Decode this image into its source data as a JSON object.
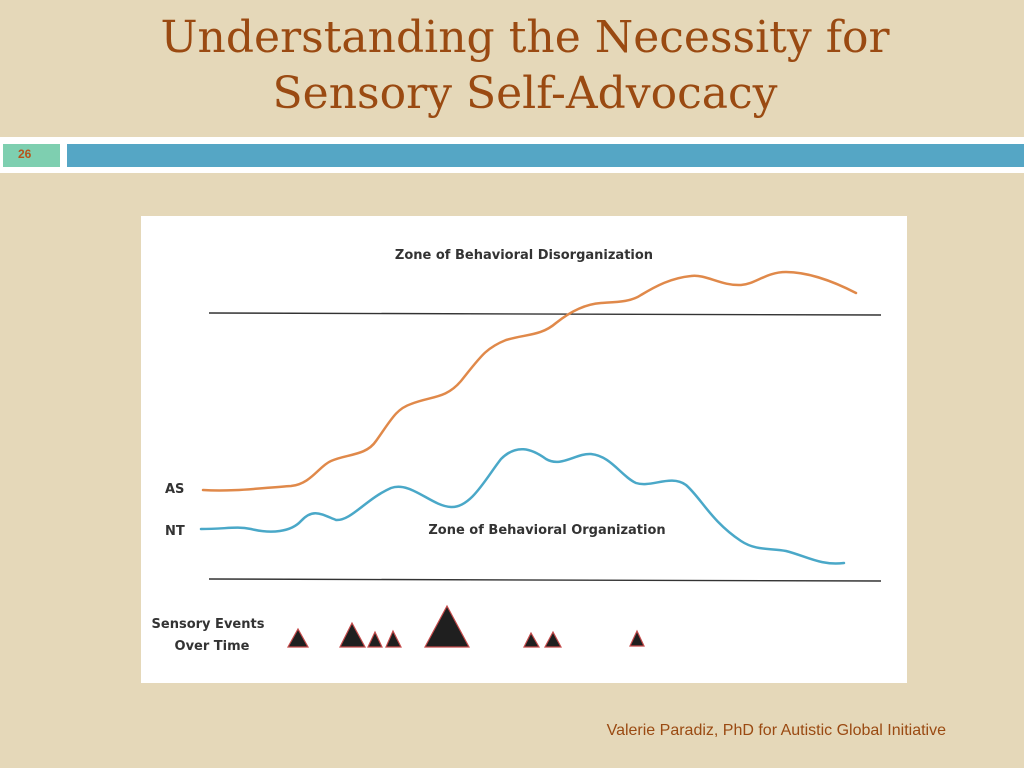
{
  "slide": {
    "title_line1": "Understanding the Necessity for",
    "title_line2": "Sensory Self-Advocacy",
    "number": "26",
    "footer": "Valerie Paradiz, PhD for Autistic Global Initiative"
  },
  "diagram": {
    "zone_top_label": "Zone of Behavioral Disorganization",
    "zone_bottom_label": "Zone of Behavioral Organization",
    "as_label": "AS",
    "nt_label": "NT",
    "events_label_line1": "Sensory Events",
    "events_label_line2": "Over Time",
    "colors": {
      "as_line": "#e0894a",
      "nt_line": "#4aa8c8",
      "triangle_fill": "#1f1f1f",
      "triangle_outline": "#c44b4b",
      "threshold_line": "#333333"
    }
  }
}
